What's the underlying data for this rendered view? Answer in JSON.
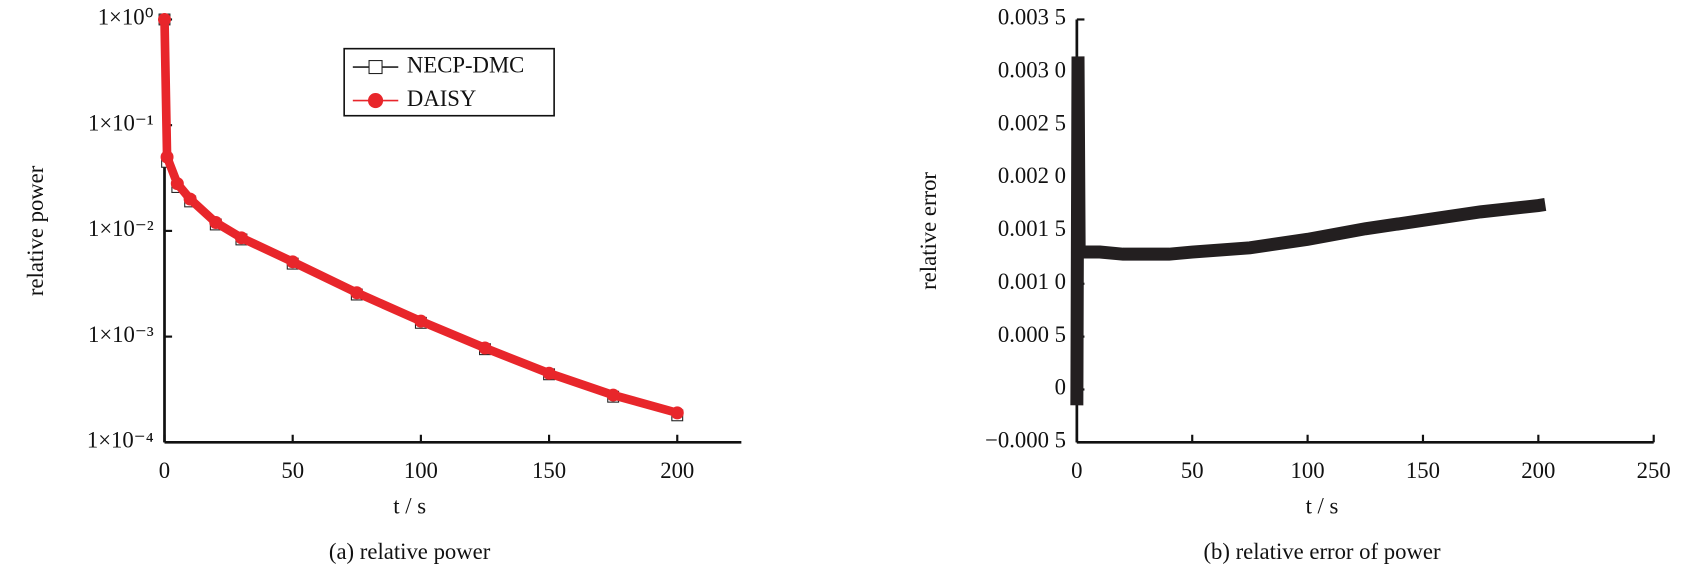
{
  "chart_data": [
    {
      "type": "line",
      "caption": "(a) relative power",
      "ylabel": "relative power",
      "xlabel": "t / s",
      "log_y": true,
      "x": [
        0,
        1,
        5,
        10,
        20,
        30,
        50,
        75,
        100,
        125,
        150,
        175,
        200
      ],
      "series": [
        {
          "name": "NECP-DMC",
          "color": "#222222",
          "marker": "square",
          "values": [
            1,
            0.045,
            0.026,
            0.019,
            0.0115,
            0.0083,
            0.0049,
            0.0025,
            0.00135,
            0.00076,
            0.00044,
            0.00027,
            0.00018
          ]
        },
        {
          "name": "DAISY",
          "color": "#e8262b",
          "marker": "circle",
          "values": [
            1,
            0.05,
            0.028,
            0.02,
            0.012,
            0.0086,
            0.0051,
            0.0026,
            0.0014,
            0.00078,
            0.00045,
            0.00028,
            0.00019
          ]
        }
      ],
      "xlim": [
        0,
        225
      ],
      "xticks": [
        0,
        50,
        100,
        150,
        200
      ],
      "ylim": [
        0.0001,
        1
      ],
      "yticks": [
        {
          "value": 0.0001,
          "label": "1×10⁻⁴"
        },
        {
          "value": 0.001,
          "label": "1×10⁻³"
        },
        {
          "value": 0.01,
          "label": "1×10⁻²"
        },
        {
          "value": 0.1,
          "label": "1×10⁻¹"
        },
        {
          "value": 1,
          "label": "1×10⁰"
        }
      ],
      "legend": "top-center"
    },
    {
      "type": "line",
      "caption": "(b) relative error of power",
      "ylabel": "relative error",
      "xlabel": "t / s",
      "color": "#231f20",
      "x": [
        0,
        0.5,
        1,
        2,
        10,
        20,
        30,
        40,
        50,
        75,
        100,
        125,
        150,
        175,
        200,
        203
      ],
      "values": [
        -0.00015,
        0.00315,
        0.0013,
        0.0013,
        0.0013,
        0.00128,
        0.00128,
        0.00128,
        0.0013,
        0.00134,
        0.00142,
        0.00152,
        0.0016,
        0.00168,
        0.00174,
        0.00175
      ],
      "xlim": [
        0,
        250
      ],
      "xticks": [
        0,
        50,
        100,
        150,
        200,
        250
      ],
      "ylim": [
        -0.0005,
        0.0035
      ],
      "yticks": [
        {
          "value": -0.0005,
          "label": "−0.000 5"
        },
        0,
        {
          "value": 0.0005,
          "label": "0.000 5"
        },
        {
          "value": 0.001,
          "label": "0.001 0"
        },
        {
          "value": 0.0015,
          "label": "0.001 5"
        },
        {
          "value": 0.002,
          "label": "0.002 0"
        },
        {
          "value": 0.0025,
          "label": "0.002 5"
        },
        {
          "value": 0.003,
          "label": "0.003 0"
        },
        {
          "value": 0.0035,
          "label": "0.003 5"
        }
      ]
    }
  ]
}
